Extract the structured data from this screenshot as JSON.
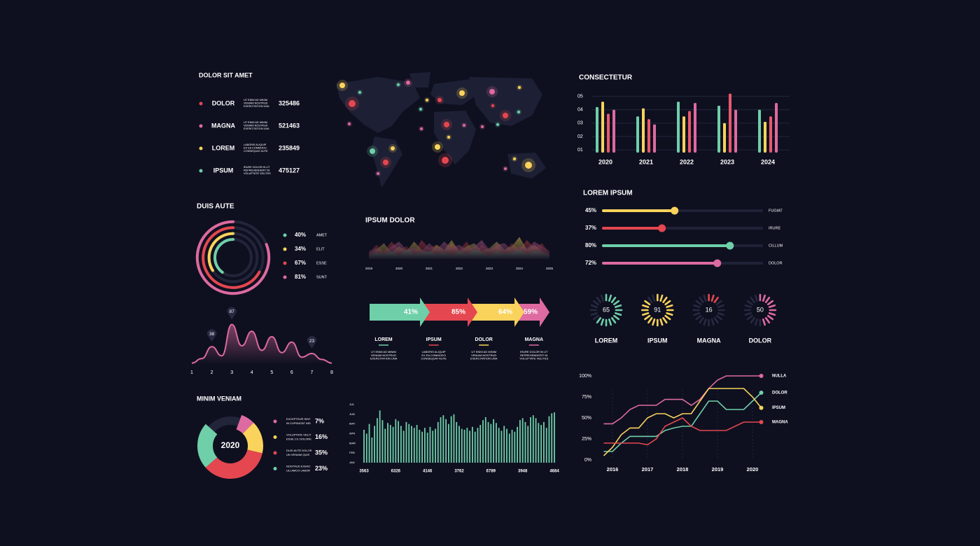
{
  "chart_data": [
    {
      "type": "list",
      "title": "DOLOR SIT AMET",
      "categories": [
        "DOLOR",
        "MAGNA",
        "LOREM",
        "IPSUM"
      ],
      "notes": [
        [
          "UT ENIM AD MINIM",
          "VENIAM NOSTRUD",
          "EXERCITATION UNA"
        ],
        [
          "UT ENIM AD MINIM",
          "VENIAM NOSTRUD",
          "EXERCITATION UNA"
        ],
        [
          "LABORIS ALIQUIP",
          "EX EA COMMODO",
          "CONSEQUAT AUTE"
        ],
        [
          "IRURE DOLOR IN UT",
          "REPREHENDERIT IN",
          "VOLUPTATE VELITES"
        ]
      ],
      "values": [
        325486,
        521463,
        235849,
        475127
      ],
      "colors": [
        "#e4474f",
        "#dd6aa0",
        "#f9d35b",
        "#6fcfa9"
      ]
    },
    {
      "type": "bar",
      "title": "CONSECTETUR",
      "categories": [
        "2020",
        "2021",
        "2022",
        "2023",
        "2024"
      ],
      "series": [
        {
          "color": "#6fcfa9",
          "values": [
            4.2,
            3.5,
            4.6,
            4.3,
            4.0
          ]
        },
        {
          "color": "#f9d35b",
          "values": [
            4.6,
            4.1,
            3.5,
            3.0,
            3.1
          ]
        },
        {
          "color": "#e8596b",
          "values": [
            3.7,
            3.3,
            3.9,
            5.2,
            3.5
          ]
        },
        {
          "color": "#dd6aa0",
          "values": [
            4.0,
            2.9,
            4.5,
            4.0,
            4.5
          ]
        }
      ],
      "ylim": [
        0.8,
        5.5
      ],
      "yticks": [
        {
          "value": 1,
          "label": "01"
        },
        {
          "value": 2,
          "label": "02"
        },
        {
          "value": 3,
          "label": "03"
        },
        {
          "value": 4,
          "label": "04"
        },
        {
          "value": 5,
          "label": "05"
        }
      ],
      "grid": true
    },
    {
      "type": "slider",
      "title": "LOREM IPSUM",
      "categories": [
        "FUGIAT",
        "IRURE",
        "CILLUM",
        "DOLOR"
      ],
      "values": [
        45,
        37,
        80,
        72
      ],
      "value_labels": [
        "45%",
        "37%",
        "80%",
        "72%"
      ],
      "colors": [
        "#f9d35b",
        "#e4474f",
        "#6fcfa9",
        "#dd6aa0"
      ],
      "xlim": [
        0,
        100
      ]
    },
    {
      "type": "gauge",
      "categories": [
        "LOREM",
        "IPSUM",
        "MAGNA",
        "DOLOR"
      ],
      "values": [
        65,
        91,
        16,
        50
      ],
      "colors": [
        "#6fcfa9",
        "#f9d35b",
        "#e4474f",
        "#dd6aa0"
      ],
      "ylim": [
        0,
        100
      ]
    },
    {
      "type": "rings",
      "title": "DUIS AUTE",
      "categories": [
        "AMET",
        "ELIT",
        "ESSE",
        "SUNT"
      ],
      "values": [
        40,
        34,
        67,
        81
      ],
      "value_labels": [
        "40%",
        "34%",
        "67%",
        "81%"
      ],
      "colors": [
        "#6fcfa9",
        "#f9d35b",
        "#e4474f",
        "#dd6aa0"
      ]
    },
    {
      "type": "area",
      "x": [
        1,
        1.5,
        2,
        2.5,
        3,
        3.5,
        4,
        4.5,
        5,
        5.5,
        6,
        6.5,
        7,
        7.5,
        8
      ],
      "values": [
        2,
        12,
        38,
        18,
        87,
        40,
        72,
        30,
        60,
        25,
        48,
        15,
        23,
        10,
        2
      ],
      "value_labels": [
        null,
        null,
        "38",
        null,
        "87",
        null,
        null,
        null,
        null,
        null,
        null,
        null,
        "23",
        null,
        null
      ],
      "xlim": [
        1,
        8
      ],
      "xticks": [
        1,
        2,
        3,
        4,
        5,
        6,
        7,
        8
      ],
      "ylim": [
        0,
        100
      ],
      "color": "#dd6aa0"
    },
    {
      "type": "mountain",
      "title": "IPSUM DOLOR",
      "x": [
        2019,
        2019.25,
        2019.5,
        2019.75,
        2020,
        2020.25,
        2020.5,
        2020.75,
        2021,
        2021.25,
        2021.5,
        2021.75,
        2022,
        2022.25,
        2022.5,
        2022.75,
        2023,
        2023.25,
        2023.5,
        2023.75,
        2024,
        2024.25,
        2024.5,
        2024.75,
        2025
      ],
      "series": [
        {
          "color": "#e4474f",
          "values": [
            20,
            45,
            25,
            55,
            30,
            40,
            20,
            60,
            35,
            45,
            25,
            50,
            30,
            55,
            20,
            45,
            30,
            40,
            25,
            50,
            30,
            60,
            35,
            50,
            20
          ]
        },
        {
          "color": "#f9d35b",
          "values": [
            15,
            30,
            50,
            20,
            40,
            25,
            55,
            30,
            20,
            45,
            30,
            60,
            25,
            40,
            50,
            25,
            35,
            55,
            30,
            40,
            70,
            30,
            45,
            25,
            15
          ]
        },
        {
          "color": "#dd6aa0",
          "values": [
            25,
            35,
            20,
            40,
            55,
            30,
            35,
            25,
            50,
            30,
            55,
            35,
            45,
            30,
            40,
            60,
            30,
            45,
            50,
            30,
            40,
            35,
            55,
            40,
            25
          ]
        },
        {
          "color": "#6fcfa9",
          "values": [
            10,
            20,
            15,
            25,
            10,
            30,
            15,
            20,
            25,
            15,
            20,
            10,
            25,
            15,
            30,
            20,
            10,
            25,
            15,
            20,
            30,
            15,
            25,
            20,
            10
          ]
        }
      ],
      "xlim": [
        2019,
        2025
      ],
      "xticks": [
        2019,
        2020,
        2021,
        2022,
        2023,
        2024,
        2025
      ],
      "ylim": [
        0,
        100
      ]
    },
    {
      "type": "arrows",
      "categories": [
        "LOREM",
        "IPSUM",
        "DOLOR",
        "MAGNA"
      ],
      "values": [
        41,
        85,
        64,
        59
      ],
      "value_labels": [
        "41%",
        "85%",
        "64%",
        "59%"
      ],
      "colors": [
        "#6fcfa9",
        "#e4474f",
        "#f9d35b",
        "#dd6aa0"
      ],
      "notes": [
        [
          "UT ENIM AD MINIM",
          "VENIAM NOSTRUD",
          "EXERCITATION UNA"
        ],
        [
          "LABORIS ALIQUIP",
          "EX EA COMMODO",
          "CONSEQUAT AUTE"
        ],
        [
          "UT ENIM AD MINIM",
          "VENIAM NOSTRUD",
          "EXERCITATION UNA"
        ],
        [
          "IRURE DOLOR IN UT",
          "REPREHENDERIT IN",
          "VOLUPTATE VELITES"
        ]
      ]
    },
    {
      "type": "column",
      "color": "#6fcfa9",
      "values": [
        3.4,
        3.0,
        4.0,
        2.6,
        3.8,
        4.6,
        5.4,
        4.4,
        3.5,
        4.1,
        3.9,
        3.7,
        4.5,
        4.3,
        3.8,
        3.3,
        4.2,
        4.0,
        3.8,
        3.6,
        3.9,
        3.4,
        3.2,
        3.6,
        3.1,
        3.7,
        3.3,
        3.5,
        4.2,
        4.7,
        4.9,
        4.5,
        4.0,
        4.8,
        5.0,
        4.2,
        3.8,
        3.5,
        3.4,
        3.6,
        3.3,
        3.7,
        3.2,
        3.6,
        3.9,
        4.4,
        4.7,
        4.2,
        4.0,
        4.5,
        4.1,
        3.6,
        3.3,
        3.8,
        3.5,
        3.0,
        3.4,
        3.2,
        3.7,
        4.4,
        4.6,
        4.2,
        3.8,
        4.7,
        4.9,
        4.6,
        4.1,
        3.9,
        4.2,
        3.6,
        4.8,
        5.1,
        5.2
      ],
      "xlim": [
        1,
        73
      ],
      "xticks": [
        {
          "value": 1,
          "label": "3563"
        },
        {
          "value": 13,
          "label": "6326"
        },
        {
          "value": 25,
          "label": "4146"
        },
        {
          "value": 37,
          "label": "3762"
        },
        {
          "value": 49,
          "label": "6789"
        },
        {
          "value": 61,
          "label": "3948"
        },
        {
          "value": 73,
          "label": "4684"
        }
      ],
      "ylim": [
        0,
        6
      ],
      "yticks": [
        {
          "value": 0,
          "label": "JAN"
        },
        {
          "value": 1,
          "label": "FEB"
        },
        {
          "value": 2,
          "label": "MAR"
        },
        {
          "value": 3,
          "label": "APR"
        },
        {
          "value": 4,
          "label": "MAY"
        },
        {
          "value": 5,
          "label": "JUN"
        },
        {
          "value": 6,
          "label": "JUL"
        }
      ]
    },
    {
      "type": "donut",
      "title": "MINIM VENIAM",
      "center_label": "2020",
      "notes": [
        [
          "EXCEPTEUR SINT",
          "IN CUPIDATAT NID"
        ],
        [
          "VOLUPTATE VELIT",
          "ESSE CIL DOLORE"
        ],
        [
          "DUIS AUTE DOLOR",
          "UN VENIAM QUIS"
        ],
        [
          "NOSTRUD EXERC",
          "ULLAMCO LABOR"
        ]
      ],
      "values": [
        7,
        16,
        35,
        23
      ],
      "value_labels": [
        "7%",
        "16%",
        "35%",
        "23%"
      ],
      "colors": [
        "#dd6aa0",
        "#f9d35b",
        "#e4474f",
        "#6fcfa9"
      ]
    },
    {
      "type": "line",
      "x": [
        2015.75,
        2016,
        2016.25,
        2016.5,
        2016.75,
        2017,
        2017.25,
        2017.5,
        2017.75,
        2018,
        2018.25,
        2018.5,
        2018.75,
        2019,
        2019.25,
        2019.5,
        2019.75,
        2020,
        2020.25
      ],
      "series": [
        {
          "name": "NULLA",
          "color": "#dd6aa0",
          "values": [
            43,
            43,
            50,
            60,
            65,
            65,
            65,
            72,
            72,
            72,
            65,
            72,
            85,
            95,
            100,
            100,
            100,
            100,
            100
          ]
        },
        {
          "name": "DOLOR",
          "color": "#6fcfa9",
          "values": [
            10,
            10,
            20,
            28,
            28,
            28,
            28,
            35,
            38,
            40,
            40,
            55,
            70,
            70,
            60,
            60,
            60,
            70,
            80
          ]
        },
        {
          "name": "IPSUM",
          "color": "#f9d35b",
          "values": [
            5,
            15,
            30,
            38,
            38,
            50,
            55,
            55,
            50,
            55,
            55,
            70,
            85,
            85,
            85,
            85,
            85,
            75,
            62
          ]
        },
        {
          "name": "MAGNA",
          "color": "#e4474f",
          "values": [
            20,
            20,
            20,
            20,
            20,
            18,
            25,
            40,
            45,
            50,
            40,
            35,
            35,
            35,
            35,
            40,
            45,
            45,
            45
          ]
        }
      ],
      "xlim": [
        2015.7,
        2020.3
      ],
      "xticks": [
        2016,
        2017,
        2018,
        2019,
        2020
      ],
      "ylim": [
        0,
        100
      ],
      "yticks": [
        {
          "value": 0,
          "label": "0%"
        },
        {
          "value": 25,
          "label": "25%"
        },
        {
          "value": 50,
          "label": "50%"
        },
        {
          "value": 75,
          "label": "75%"
        },
        {
          "value": 100,
          "label": "100%"
        }
      ]
    }
  ]
}
